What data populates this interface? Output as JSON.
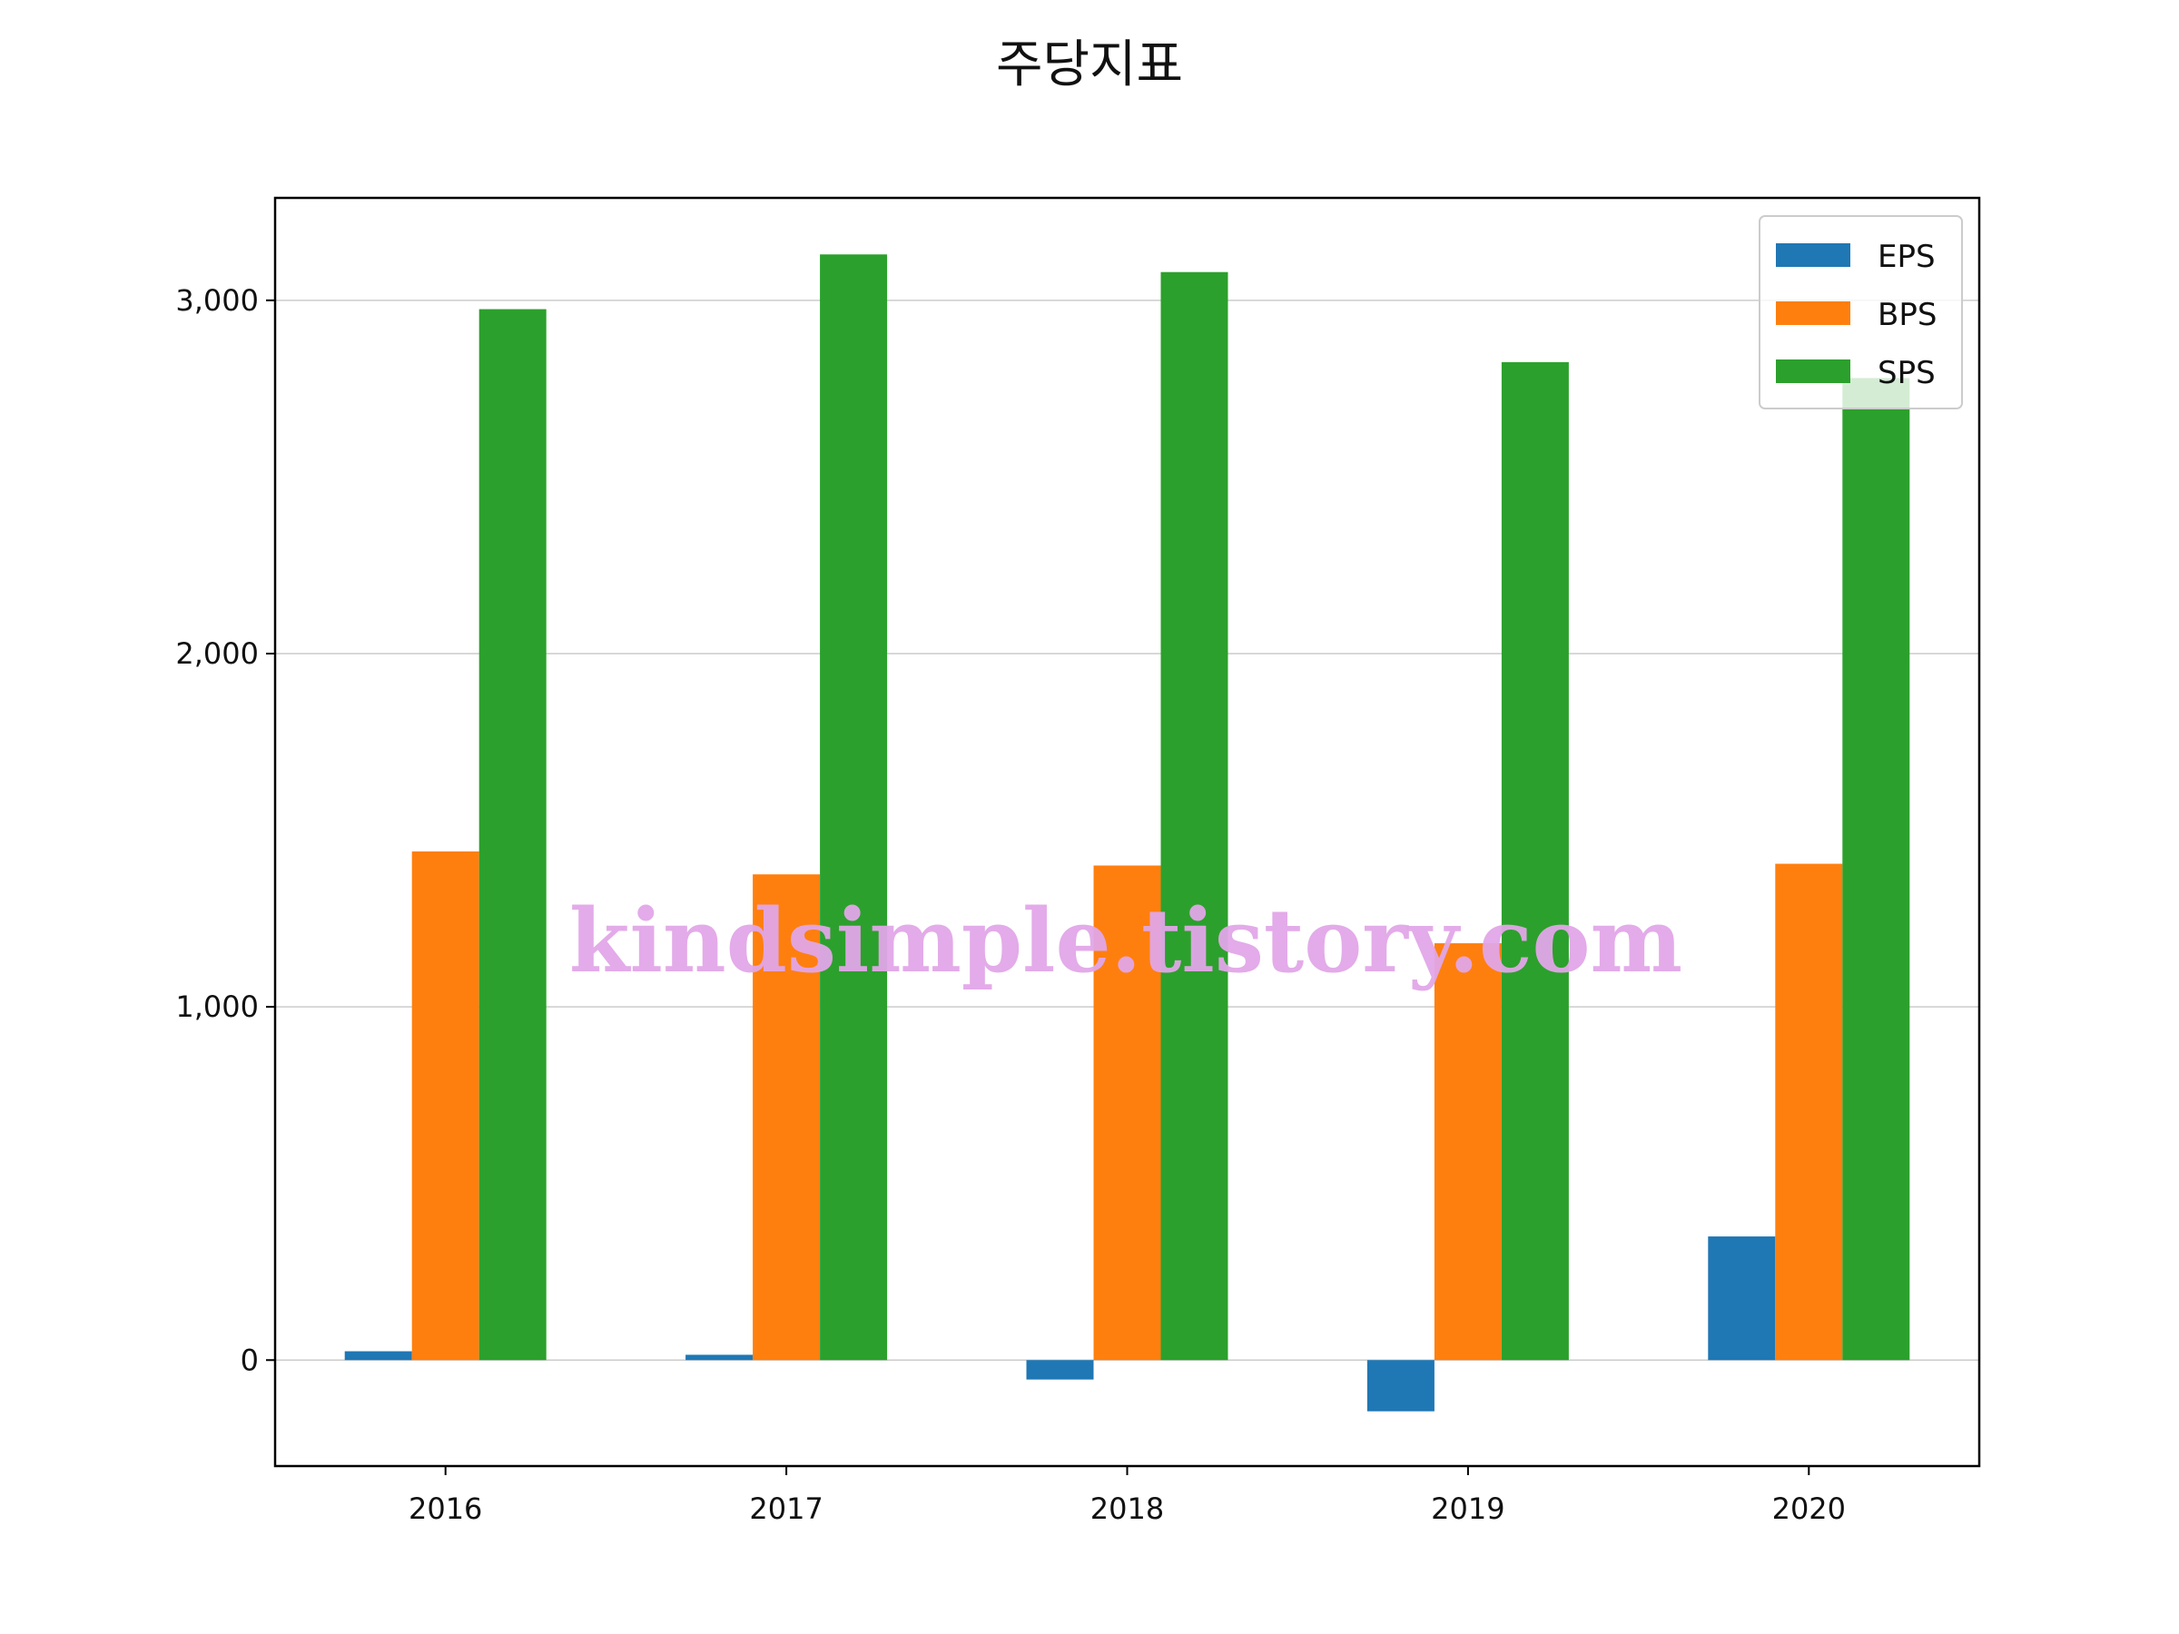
{
  "chart_data": {
    "type": "bar",
    "title": "주당지표",
    "categories": [
      "2016",
      "2017",
      "2018",
      "2019",
      "2020"
    ],
    "series": [
      {
        "name": "EPS",
        "color": "#1f77b4",
        "values": [
          25,
          15,
          -55,
          -145,
          350
        ]
      },
      {
        "name": "BPS",
        "color": "#ff7f0e",
        "values": [
          1440,
          1375,
          1400,
          1180,
          1405
        ]
      },
      {
        "name": "SPS",
        "color": "#2ca02c",
        "values": [
          2975,
          3130,
          3080,
          2825,
          2780
        ]
      }
    ],
    "xlabel": "",
    "ylabel": "",
    "ylim": [
      -300,
      3290
    ],
    "yticks": [
      0,
      1000,
      2000,
      3000
    ],
    "ytick_labels": [
      "0",
      "1,000",
      "2,000",
      "3,000"
    ],
    "grid": "y",
    "legend": "top-right"
  },
  "watermark": "kindsimple.tistory.com"
}
